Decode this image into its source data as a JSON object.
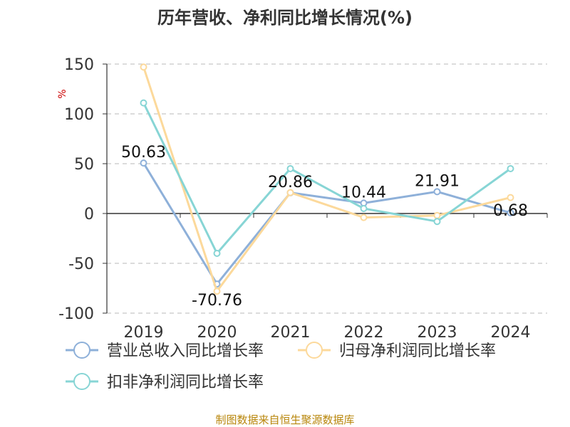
{
  "chart_data": {
    "type": "line",
    "title": "历年营收、净利同比增长情况(%)",
    "unit": "%",
    "categories": [
      "2019",
      "2020",
      "2021",
      "2022",
      "2023",
      "2024"
    ],
    "ylim": [
      -100,
      150
    ],
    "yticks": [
      150,
      100,
      50,
      0,
      -50,
      -100
    ],
    "grid": true,
    "legend_position": "bottom",
    "series": [
      {
        "name": "营业总收入同比增长率",
        "color": "#8eb0d9",
        "values": [
          50.63,
          -70.76,
          20.86,
          10.44,
          21.91,
          0.68
        ],
        "labels": [
          "50.63",
          "-70.76",
          "20.86",
          "10.44",
          "21.91",
          "0.68"
        ]
      },
      {
        "name": "归母净利润同比增长率",
        "color": "#fcd99b",
        "values": [
          147,
          -78,
          21,
          -4,
          -2,
          16
        ]
      },
      {
        "name": "扣非净利润同比增长率",
        "color": "#87d5d5",
        "values": [
          111,
          -40,
          45,
          5,
          -8,
          45
        ]
      }
    ]
  },
  "source": "制图数据来自恒生聚源数据库"
}
